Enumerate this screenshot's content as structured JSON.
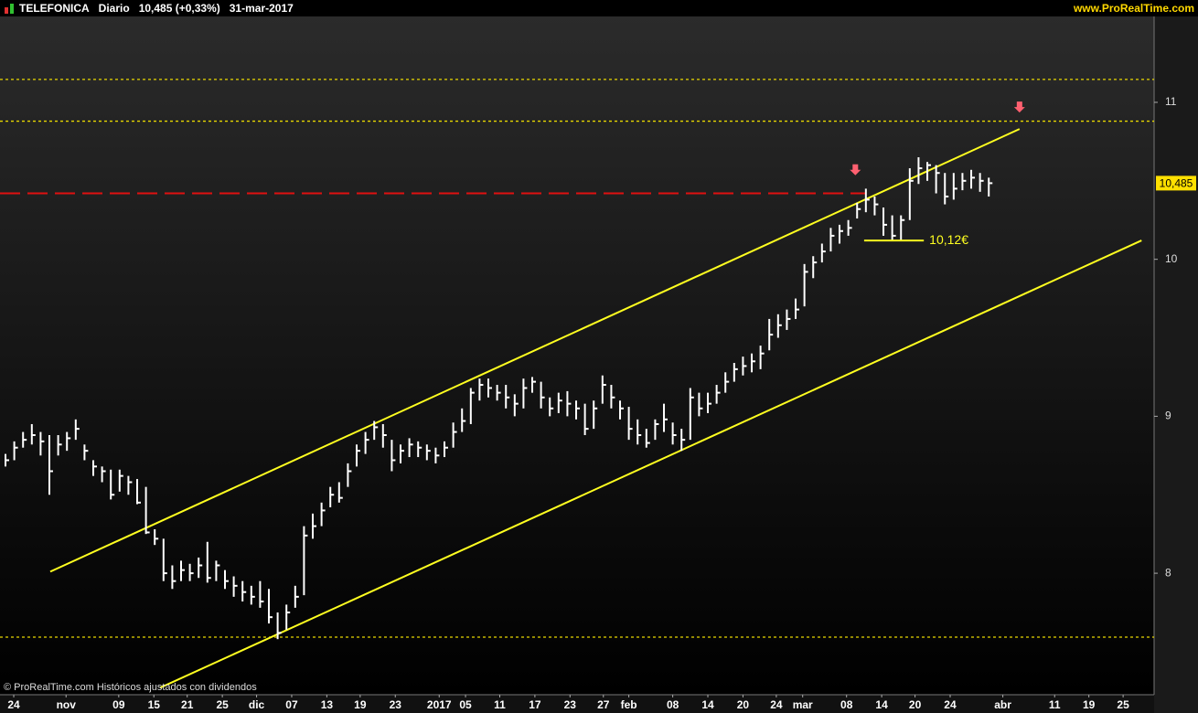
{
  "chart_data": {
    "type": "ohlc",
    "symbol": "TELEFONICA",
    "period": "Diario",
    "quote": "10,485 (+0,33%)",
    "date": "31-mar-2017",
    "source": "www.ProRealTime.com",
    "footnote": "© ProRealTime.com Históricos ajustados con dividendos",
    "color": "#ffffff",
    "close": [
      8.72,
      8.8,
      8.85,
      8.88,
      8.84,
      8.65,
      8.82,
      8.86,
      8.92,
      8.78,
      8.68,
      8.65,
      8.5,
      8.62,
      8.58,
      8.45,
      8.26,
      8.22,
      8.0,
      7.95,
      8.02,
      8.0,
      8.05,
      7.97,
      8.05,
      7.95,
      7.92,
      7.88,
      7.85,
      7.82,
      7.72,
      7.62,
      7.75,
      7.85,
      8.24,
      8.3,
      8.4,
      8.5,
      8.48,
      8.65,
      8.78,
      8.85,
      8.93,
      8.88,
      8.72,
      8.78,
      8.82,
      8.8,
      8.78,
      8.75,
      8.8,
      8.9,
      8.97,
      9.15,
      9.2,
      9.18,
      9.15,
      9.12,
      9.08,
      9.18,
      9.22,
      9.12,
      9.05,
      9.1,
      9.08,
      9.05,
      8.92,
      9.05,
      9.2,
      9.12,
      9.05,
      8.92,
      8.88,
      8.83,
      8.95,
      8.98,
      8.88,
      8.85,
      9.12,
      9.05,
      9.08,
      9.15,
      9.22,
      9.3,
      9.32,
      9.35,
      9.4,
      9.52,
      9.58,
      9.62,
      9.68,
      9.92,
      9.98,
      10.05,
      10.15,
      10.18,
      10.2,
      10.32,
      10.38,
      10.35,
      10.22,
      10.15,
      10.25,
      10.5,
      10.58,
      10.6,
      10.55,
      10.4,
      10.45,
      10.5,
      10.52,
      10.5,
      10.485
    ],
    "high": [
      8.76,
      8.84,
      8.9,
      8.95,
      8.9,
      8.88,
      8.88,
      8.9,
      8.98,
      8.82,
      8.72,
      8.68,
      8.66,
      8.66,
      8.62,
      8.6,
      8.55,
      8.28,
      8.22,
      8.05,
      8.08,
      8.06,
      8.1,
      8.2,
      8.08,
      8.02,
      7.98,
      7.95,
      7.92,
      7.95,
      7.9,
      7.75,
      7.8,
      7.92,
      8.3,
      8.38,
      8.45,
      8.55,
      8.58,
      8.7,
      8.82,
      8.9,
      8.97,
      8.95,
      8.85,
      8.82,
      8.86,
      8.84,
      8.82,
      8.8,
      8.84,
      8.96,
      9.05,
      9.18,
      9.24,
      9.24,
      9.2,
      9.2,
      9.14,
      9.24,
      9.25,
      9.22,
      9.12,
      9.15,
      9.16,
      9.1,
      9.08,
      9.1,
      9.26,
      9.2,
      9.1,
      9.06,
      8.98,
      8.92,
      8.98,
      9.08,
      8.96,
      8.92,
      9.18,
      9.15,
      9.15,
      9.2,
      9.28,
      9.34,
      9.38,
      9.4,
      9.45,
      9.62,
      9.65,
      9.68,
      9.75,
      9.97,
      10.02,
      10.1,
      10.2,
      10.22,
      10.25,
      10.36,
      10.45,
      10.4,
      10.33,
      10.28,
      10.28,
      10.58,
      10.65,
      10.62,
      10.6,
      10.55,
      10.55,
      10.55,
      10.57,
      10.55,
      10.52
    ],
    "low": [
      8.68,
      8.72,
      8.8,
      8.82,
      8.75,
      8.5,
      8.75,
      8.78,
      8.85,
      8.72,
      8.62,
      8.58,
      8.47,
      8.52,
      8.5,
      8.44,
      8.25,
      8.18,
      7.95,
      7.9,
      7.95,
      7.95,
      7.97,
      7.94,
      7.95,
      7.9,
      7.85,
      7.82,
      7.8,
      7.78,
      7.68,
      7.58,
      7.64,
      7.78,
      7.86,
      8.22,
      8.3,
      8.42,
      8.45,
      8.55,
      8.68,
      8.76,
      8.85,
      8.8,
      8.65,
      8.7,
      8.74,
      8.74,
      8.72,
      8.7,
      8.74,
      8.8,
      8.9,
      8.95,
      9.1,
      9.12,
      9.1,
      9.05,
      9.0,
      9.05,
      9.15,
      9.05,
      9.0,
      9.02,
      9.0,
      8.98,
      8.88,
      8.92,
      9.08,
      9.05,
      8.98,
      8.85,
      8.82,
      8.8,
      8.85,
      8.9,
      8.82,
      8.78,
      8.85,
      9.0,
      9.02,
      9.08,
      9.15,
      9.22,
      9.26,
      9.28,
      9.3,
      9.42,
      9.5,
      9.55,
      9.62,
      9.7,
      9.88,
      9.98,
      10.05,
      10.1,
      10.15,
      10.26,
      10.3,
      10.28,
      10.15,
      10.12,
      10.12,
      10.25,
      10.48,
      10.5,
      10.42,
      10.35,
      10.38,
      10.44,
      10.45,
      10.43,
      10.4
    ],
    "xlim": [
      -0.625,
      130.83
    ],
    "xticks": [
      {
        "value": 0.94,
        "label": "24"
      },
      {
        "value": 6.9,
        "label": "nov"
      },
      {
        "value": 12.9,
        "label": "09"
      },
      {
        "value": 16.9,
        "label": "15"
      },
      {
        "value": 20.7,
        "label": "21"
      },
      {
        "value": 24.7,
        "label": "25"
      },
      {
        "value": 28.6,
        "label": "dic"
      },
      {
        "value": 32.6,
        "label": "07"
      },
      {
        "value": 36.6,
        "label": "13"
      },
      {
        "value": 40.4,
        "label": "19"
      },
      {
        "value": 44.4,
        "label": "23"
      },
      {
        "value": 49.4,
        "label": "2017"
      },
      {
        "value": 52.4,
        "label": "05"
      },
      {
        "value": 56.3,
        "label": "11"
      },
      {
        "value": 60.3,
        "label": "17"
      },
      {
        "value": 64.3,
        "label": "23"
      },
      {
        "value": 68.1,
        "label": "27"
      },
      {
        "value": 71,
        "label": "feb"
      },
      {
        "value": 76,
        "label": "08"
      },
      {
        "value": 80,
        "label": "14"
      },
      {
        "value": 84,
        "label": "20"
      },
      {
        "value": 87.8,
        "label": "24"
      },
      {
        "value": 90.8,
        "label": "mar"
      },
      {
        "value": 95.8,
        "label": "08"
      },
      {
        "value": 99.8,
        "label": "14"
      },
      {
        "value": 103.6,
        "label": "20"
      },
      {
        "value": 107.6,
        "label": "24"
      },
      {
        "value": 113.6,
        "label": "abr"
      },
      {
        "value": 119.5,
        "label": "11"
      },
      {
        "value": 123.4,
        "label": "19"
      },
      {
        "value": 127.3,
        "label": "25"
      }
    ],
    "ylim": [
      7.226,
      11.652
    ],
    "yticks": [
      8,
      9,
      10,
      11
    ],
    "last_price": {
      "value": 10.485,
      "label": "10,485"
    },
    "hlines": [
      {
        "value": 11.146,
        "color": "#e8d800",
        "style": "dotted"
      },
      {
        "value": 10.88,
        "color": "#e8d800",
        "style": "dotted"
      },
      {
        "value": 7.593,
        "color": "#e8d800",
        "style": "dotted"
      },
      {
        "value": 10.42,
        "color": "#e01010",
        "style": "dashed"
      }
    ],
    "trendlines": [
      {
        "x": [
          5.1,
          115.5
        ],
        "y": [
          8.01,
          10.83
        ],
        "color": "#ffff20"
      },
      {
        "x": [
          17.6,
          129.4
        ],
        "y": [
          7.27,
          10.12
        ],
        "color": "#ffff20"
      }
    ],
    "signals": {
      "x": [
        96.8,
        115.5
      ],
      "y": [
        10.57,
        10.97
      ],
      "color": "#ff6070"
    },
    "annotation": {
      "x": [
        97.8,
        104.6
      ],
      "value": 10.12,
      "label": "10,12€",
      "color": "#ffff20"
    }
  }
}
